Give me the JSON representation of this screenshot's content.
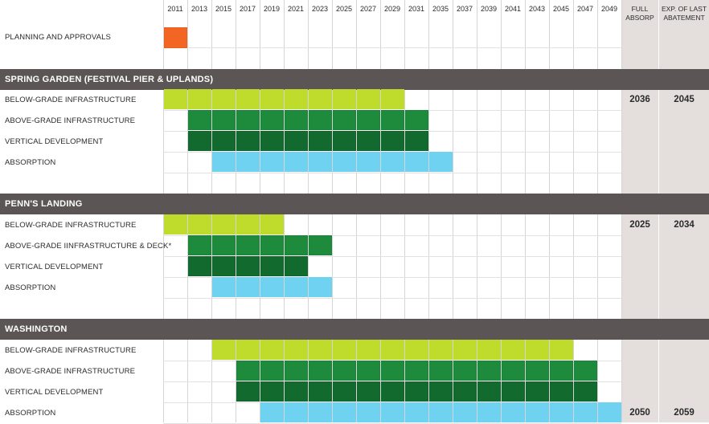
{
  "columns": {
    "years": [
      "2011",
      "2013",
      "2015",
      "2017",
      "2019",
      "2021",
      "2023",
      "2025",
      "2027",
      "2029",
      "2031",
      "2035",
      "2037",
      "2039",
      "2041",
      "2043",
      "2045",
      "2047",
      "2049"
    ],
    "full_absorp_header": [
      "FULL",
      "ABSORP"
    ],
    "exp_header": [
      "EXP. OF LAST",
      "ABATEMENT"
    ]
  },
  "colors": {
    "planning": "#f26522",
    "below_grade": "#bfdc2c",
    "above_grade": "#1e8a3c",
    "vertical": "#136a2f",
    "absorption": "#6fd2f0",
    "section_bg": "#5b5655",
    "shaded_column": "#e4dfdd"
  },
  "chart_data": {
    "type": "gantt",
    "time_unit": "period column (2011 … 2049)",
    "rows": [
      {
        "kind": "task",
        "label": "PLANNING AND APPROVALS",
        "color_key": "planning",
        "start": "2011",
        "end": "2011"
      },
      {
        "kind": "section",
        "label": "SPRING GARDEN (FESTIVAL PIER & UPLANDS)"
      },
      {
        "kind": "task",
        "label": "BELOW-GRADE INFRASTRUCTURE",
        "color_key": "below_grade",
        "start": "2011",
        "end": "2029",
        "full_absorp": "2036",
        "exp_abatement": "2045"
      },
      {
        "kind": "task",
        "label": "ABOVE-GRADE INFRASTRUCTURE",
        "color_key": "above_grade",
        "start": "2013",
        "end": "2031"
      },
      {
        "kind": "task",
        "label": "VERTICAL DEVELOPMENT",
        "color_key": "vertical",
        "start": "2013",
        "end": "2031"
      },
      {
        "kind": "task",
        "label": "ABSORPTION",
        "color_key": "absorption",
        "start": "2015",
        "end": "2035"
      },
      {
        "kind": "section",
        "label": "PENN'S LANDING"
      },
      {
        "kind": "task",
        "label": "BELOW-GRADE INFRASTRUCTURE",
        "color_key": "below_grade",
        "start": "2011",
        "end": "2019",
        "full_absorp": "2025",
        "exp_abatement": "2034"
      },
      {
        "kind": "task",
        "label": "ABOVE-GRADE IINFRASTRUCTURE & DECK*",
        "color_key": "above_grade",
        "start": "2013",
        "end": "2023"
      },
      {
        "kind": "task",
        "label": "VERTICAL DEVELOPMENT",
        "color_key": "vertical",
        "start": "2013",
        "end": "2021"
      },
      {
        "kind": "task",
        "label": "ABSORPTION",
        "color_key": "absorption",
        "start": "2015",
        "end": "2023"
      },
      {
        "kind": "section",
        "label": "WASHINGTON"
      },
      {
        "kind": "task",
        "label": "BELOW-GRADE INFRASTRUCTURE",
        "color_key": "below_grade",
        "start": "2015",
        "end": "2045"
      },
      {
        "kind": "task",
        "label": "ABOVE-GRADE INFRASTRUCTURE",
        "color_key": "above_grade",
        "start": "2017",
        "end": "2047"
      },
      {
        "kind": "task",
        "label": "VERTICAL DEVELOPMENT",
        "color_key": "vertical",
        "start": "2017",
        "end": "2047"
      },
      {
        "kind": "task",
        "label": "ABSORPTION",
        "color_key": "absorption",
        "start": "2019",
        "end": "2049",
        "full_absorp": "2050",
        "exp_abatement": "2059"
      }
    ]
  }
}
